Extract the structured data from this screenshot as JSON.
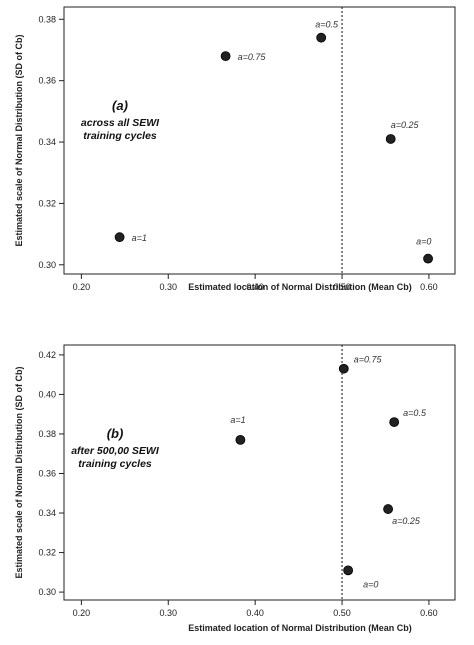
{
  "chart_data": [
    {
      "type": "scatter",
      "panel_label": "(a)",
      "annotation": [
        "across all SEWI",
        "training cycles"
      ],
      "xlabel": "Estimated location of Normal Distribution (Mean Cb)",
      "ylabel": "Estimated scale of Normal Distribution (SD of Cb)",
      "xlim": [
        0.18,
        0.63
      ],
      "ylim": [
        0.297,
        0.384
      ],
      "xticks": [
        "0.20",
        "0.30",
        "0.40",
        "0.50",
        "0.60"
      ],
      "yticks": [
        "0.30",
        "0.32",
        "0.34",
        "0.36",
        "0.38"
      ],
      "reference_line_x": 0.5,
      "grid": false,
      "points": [
        {
          "x": 0.244,
          "y": 0.309,
          "label": "a=1"
        },
        {
          "x": 0.366,
          "y": 0.368,
          "label": "a=0.75"
        },
        {
          "x": 0.476,
          "y": 0.374,
          "label": "a=0.5"
        },
        {
          "x": 0.556,
          "y": 0.341,
          "label": "a=0.25"
        },
        {
          "x": 0.599,
          "y": 0.302,
          "label": "a=0"
        }
      ]
    },
    {
      "type": "scatter",
      "panel_label": "(b)",
      "annotation": [
        "after 500,00 SEWI",
        "training cycles"
      ],
      "xlabel": "Estimated location of Normal Distribution (Mean Cb)",
      "ylabel": "Estimated scale of Normal Distribution (SD of Cb)",
      "xlim": [
        0.18,
        0.63
      ],
      "ylim": [
        0.296,
        0.425
      ],
      "xticks": [
        "0.20",
        "0.30",
        "0.40",
        "0.50",
        "0.60"
      ],
      "yticks": [
        "0.30",
        "0.32",
        "0.34",
        "0.36",
        "0.38",
        "0.40",
        "0.42"
      ],
      "reference_line_x": 0.5,
      "grid": false,
      "points": [
        {
          "x": 0.383,
          "y": 0.377,
          "label": "a=1"
        },
        {
          "x": 0.502,
          "y": 0.413,
          "label": "a=0.75"
        },
        {
          "x": 0.56,
          "y": 0.386,
          "label": "a=0.5"
        },
        {
          "x": 0.553,
          "y": 0.342,
          "label": "a=0.25"
        },
        {
          "x": 0.507,
          "y": 0.311,
          "label": "a=0"
        }
      ]
    }
  ]
}
